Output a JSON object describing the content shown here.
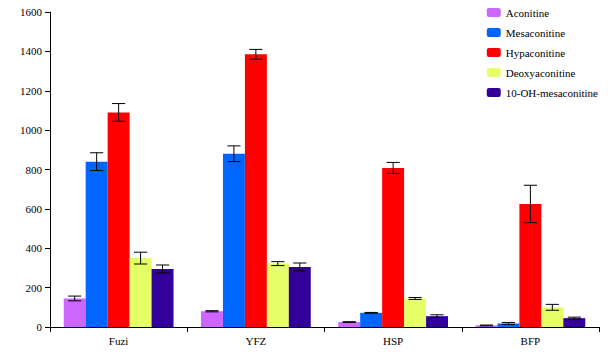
{
  "chart_data": {
    "type": "bar",
    "categories": [
      "Fuzi",
      "YFZ",
      "HSP",
      "BFP"
    ],
    "series": [
      {
        "name": "Aconitine",
        "color": "#cc66ff",
        "values": [
          145,
          80,
          25,
          8
        ],
        "errors": [
          12,
          3,
          2,
          2
        ]
      },
      {
        "name": "Mesaconitine",
        "color": "#0066ff",
        "values": [
          840,
          880,
          72,
          18
        ],
        "errors": [
          45,
          40,
          2,
          5
        ]
      },
      {
        "name": "Hypaconitine",
        "color": "#ff0000",
        "values": [
          1090,
          1385,
          808,
          625
        ],
        "errors": [
          45,
          25,
          28,
          95
        ]
      },
      {
        "name": "Deoxyaconitine",
        "color": "#e6ff66",
        "values": [
          350,
          322,
          145,
          100
        ],
        "errors": [
          30,
          10,
          5,
          15
        ]
      },
      {
        "name": "10-OH-mesaconitine",
        "color": "#330099",
        "values": [
          295,
          305,
          55,
          45
        ],
        "errors": [
          20,
          20,
          7,
          5
        ]
      }
    ],
    "ylim": [
      0,
      1600
    ],
    "yticks": [
      0,
      200,
      400,
      600,
      800,
      1000,
      1200,
      1400,
      1600
    ],
    "grid": false,
    "legend": "top-right"
  }
}
